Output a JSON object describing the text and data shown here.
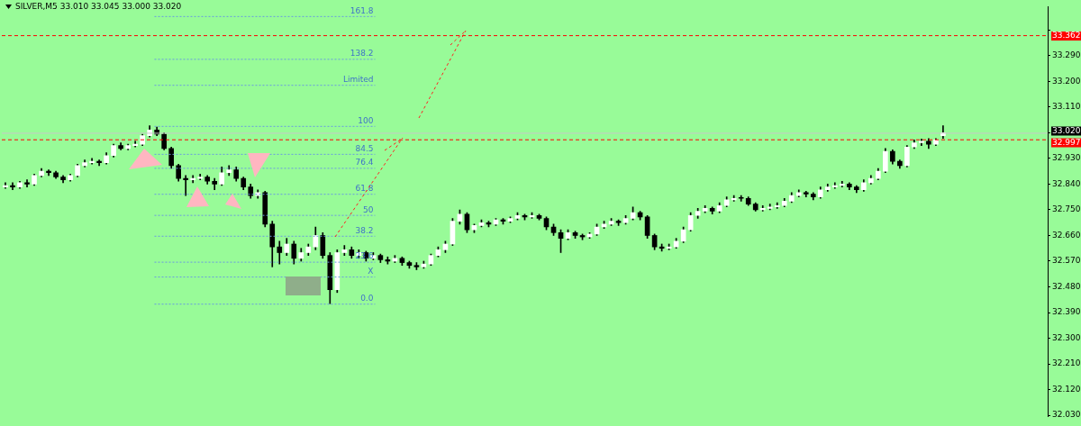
{
  "chart_data": {
    "type": "candlestick",
    "title": "SILVER,M5 33.010 33.045 33.000 33.020",
    "color": "#000000",
    "tick_labels": "y",
    "colors": [
      "#ffffff",
      "#000000",
      "#ffffff",
      "#000000",
      "#ffffff",
      "#ffffff",
      "#000000",
      "#000000",
      "#000000",
      "#ffffff",
      "#ffffff",
      "#ffffff",
      "#ffffff",
      "#000000",
      "#ffffff",
      "#ffffff",
      "#000000",
      "#ffffff",
      "#ffffff",
      "#ffffff",
      "#ffffff",
      "#000000",
      "#000000",
      "#000000",
      "#000000",
      "#000000",
      "#ffffff",
      "#ffffff",
      "#000000",
      "#000000",
      "#ffffff",
      "#ffffff",
      "#000000",
      "#000000",
      "#000000",
      "#ffffff",
      "#000000",
      "#000000",
      "#000000",
      "#ffffff",
      "#000000",
      "#ffffff",
      "#ffffff",
      "#ffffff",
      "#000000",
      "#000000",
      "#ffffff",
      "#ffffff",
      "#000000",
      "#ffffff",
      "#000000",
      "#ffffff",
      "#000000",
      "#000000",
      "#ffffff",
      "#000000",
      "#000000",
      "#000000",
      "#ffffff",
      "#ffffff",
      "#ffffff",
      "#ffffff",
      "#ffffff",
      "#ffffff",
      "#000000",
      "#ffffff",
      "#ffffff",
      "#000000",
      "#ffffff",
      "#000000",
      "#ffffff",
      "#ffffff",
      "#000000",
      "#ffffff",
      "#000000",
      "#000000",
      "#000000",
      "#000000",
      "#ffffff",
      "#000000",
      "#000000",
      "#ffffff",
      "#ffffff",
      "#ffffff",
      "#ffffff",
      "#000000",
      "#ffffff",
      "#ffffff",
      "#000000",
      "#000000",
      "#000000",
      "#000000",
      "#ffffff",
      "#ffffff",
      "#ffffff",
      "#ffffff",
      "#ffffff",
      "#ffffff",
      "#000000",
      "#ffffff",
      "#ffffff",
      "#ffffff",
      "#000000",
      "#000000",
      "#000000",
      "#ffffff",
      "#ffffff",
      "#ffffff",
      "#ffffff",
      "#ffffff",
      "#ffffff",
      "#000000",
      "#000000",
      "#ffffff",
      "#ffffff",
      "#ffffff",
      "#ffffff",
      "#000000",
      "#000000",
      "#ffffff",
      "#ffffff",
      "#ffffff",
      "#ffffff",
      "#000000",
      "#000000",
      "#ffffff",
      "#ffffff",
      "#ffffff",
      "#000000",
      "#ffffff",
      "#ffffff",
      null,
      null,
      null,
      null,
      null,
      null,
      null,
      null,
      null,
      null,
      null,
      null,
      null,
      null
    ],
    "categories": [
      null,
      null,
      null,
      null,
      null,
      null,
      null,
      null,
      null,
      null,
      null,
      null,
      null,
      null,
      null,
      null,
      null,
      null,
      null,
      null,
      null,
      null,
      null,
      null,
      null,
      null,
      null,
      null,
      null,
      null,
      null,
      null,
      null,
      null,
      null,
      null,
      null,
      null,
      null,
      null,
      null,
      null,
      null,
      null,
      null,
      null,
      null,
      null,
      null,
      null,
      null,
      null,
      null,
      null,
      null,
      null,
      null,
      null,
      null,
      null,
      null,
      null,
      null,
      null,
      null,
      null,
      null,
      null,
      null,
      null,
      null,
      null,
      null,
      null,
      null,
      null,
      null,
      null,
      null,
      null,
      null,
      null,
      null,
      null,
      null,
      null,
      null,
      null,
      null,
      null,
      null,
      null,
      null,
      null,
      null,
      null,
      null,
      null,
      null,
      null,
      null,
      null,
      null,
      null,
      null,
      null,
      null,
      null,
      null,
      null,
      null,
      null,
      null,
      null,
      null,
      null,
      null,
      null,
      null,
      null,
      null,
      null,
      null,
      null,
      null,
      null,
      null,
      null,
      null,
      null,
      null,
      null,
      null,
      null,
      null,
      null,
      null,
      null,
      null,
      null,
      null,
      null,
      null,
      null,
      null
    ],
    "ohlc": [
      [
        32.83,
        32.845,
        32.825,
        32.835
      ],
      [
        32.835,
        32.845,
        32.82,
        32.83
      ],
      [
        32.83,
        32.85,
        32.825,
        32.845
      ],
      [
        32.845,
        32.855,
        32.83,
        32.84
      ],
      [
        32.84,
        32.875,
        32.835,
        32.87
      ],
      [
        32.87,
        32.895,
        32.865,
        32.885
      ],
      [
        32.885,
        32.89,
        32.87,
        32.88
      ],
      [
        32.88,
        32.885,
        32.86,
        32.865
      ],
      [
        32.865,
        32.87,
        32.845,
        32.855
      ],
      [
        32.855,
        32.875,
        32.85,
        32.87
      ],
      [
        32.87,
        32.91,
        32.865,
        32.905
      ],
      [
        32.905,
        32.925,
        32.9,
        32.915
      ],
      [
        32.915,
        32.93,
        32.91,
        32.92
      ],
      [
        32.92,
        32.925,
        32.905,
        32.915
      ],
      [
        32.915,
        32.95,
        32.91,
        32.94
      ],
      [
        32.94,
        32.98,
        32.935,
        32.975
      ],
      [
        32.975,
        32.985,
        32.96,
        32.965
      ],
      [
        32.965,
        32.98,
        32.96,
        32.975
      ],
      [
        32.975,
        32.99,
        32.97,
        32.98
      ],
      [
        32.98,
        33.015,
        32.975,
        33.01
      ],
      [
        33.01,
        33.045,
        33.005,
        33.03
      ],
      [
        33.03,
        33.04,
        33.01,
        33.015
      ],
      [
        33.015,
        33.02,
        32.96,
        32.965
      ],
      [
        32.965,
        32.97,
        32.895,
        32.905
      ],
      [
        32.905,
        32.91,
        32.85,
        32.86
      ],
      [
        32.86,
        32.87,
        32.8,
        32.855
      ],
      [
        32.855,
        32.87,
        32.845,
        32.86
      ],
      [
        32.86,
        32.875,
        32.855,
        32.865
      ],
      [
        32.865,
        32.87,
        32.84,
        32.85
      ],
      [
        32.85,
        32.86,
        32.82,
        32.84
      ],
      [
        32.84,
        32.9,
        32.835,
        32.88
      ],
      [
        32.88,
        32.905,
        32.87,
        32.89
      ],
      [
        32.89,
        32.9,
        32.85,
        32.86
      ],
      [
        32.86,
        32.865,
        32.82,
        32.83
      ],
      [
        32.83,
        32.84,
        32.79,
        32.8
      ],
      [
        32.8,
        32.82,
        32.79,
        32.81
      ],
      [
        32.81,
        32.815,
        32.69,
        32.7
      ],
      [
        32.7,
        32.71,
        32.55,
        32.62
      ],
      [
        32.62,
        32.64,
        32.56,
        32.6
      ],
      [
        32.6,
        32.65,
        32.59,
        32.63
      ],
      [
        32.63,
        32.64,
        32.56,
        32.58
      ],
      [
        32.58,
        32.615,
        32.57,
        32.6
      ],
      [
        32.6,
        32.63,
        32.59,
        32.62
      ],
      [
        32.62,
        32.69,
        32.61,
        32.66
      ],
      [
        32.66,
        32.67,
        32.58,
        32.59
      ],
      [
        32.59,
        32.6,
        32.421,
        32.47
      ],
      [
        32.47,
        32.61,
        32.46,
        32.6
      ],
      [
        32.6,
        32.625,
        32.59,
        32.61
      ],
      [
        32.61,
        32.62,
        32.58,
        32.59
      ],
      [
        32.59,
        32.61,
        32.58,
        32.6
      ],
      [
        32.6,
        32.605,
        32.57,
        32.58
      ],
      [
        32.58,
        32.6,
        32.575,
        32.59
      ],
      [
        32.59,
        32.595,
        32.565,
        32.575
      ],
      [
        32.575,
        32.585,
        32.56,
        32.57
      ],
      [
        32.57,
        32.59,
        32.565,
        32.58
      ],
      [
        32.58,
        32.585,
        32.555,
        32.565
      ],
      [
        32.565,
        32.57,
        32.545,
        32.555
      ],
      [
        32.555,
        32.565,
        32.54,
        32.55
      ],
      [
        32.55,
        32.57,
        32.545,
        32.56
      ],
      [
        32.56,
        32.595,
        32.555,
        32.59
      ],
      [
        32.59,
        32.62,
        32.585,
        32.61
      ],
      [
        32.61,
        32.64,
        32.6,
        32.63
      ],
      [
        32.63,
        32.72,
        32.625,
        32.71
      ],
      [
        32.71,
        32.75,
        32.7,
        32.735
      ],
      [
        32.735,
        32.74,
        32.67,
        32.68
      ],
      [
        32.68,
        32.7,
        32.67,
        32.695
      ],
      [
        32.695,
        32.715,
        32.69,
        32.705
      ],
      [
        32.705,
        32.71,
        32.69,
        32.7
      ],
      [
        32.7,
        32.72,
        32.695,
        32.715
      ],
      [
        32.715,
        32.72,
        32.7,
        32.71
      ],
      [
        32.71,
        32.725,
        32.705,
        32.72
      ],
      [
        32.72,
        32.74,
        32.715,
        32.73
      ],
      [
        32.73,
        32.735,
        32.715,
        32.725
      ],
      [
        32.725,
        32.74,
        32.72,
        32.73
      ],
      [
        32.73,
        32.735,
        32.715,
        32.72
      ],
      [
        32.72,
        32.725,
        32.68,
        32.69
      ],
      [
        32.69,
        32.7,
        32.66,
        32.67
      ],
      [
        32.67,
        32.68,
        32.6,
        32.65
      ],
      [
        32.65,
        32.68,
        32.645,
        32.67
      ],
      [
        32.67,
        32.675,
        32.65,
        32.66
      ],
      [
        32.66,
        32.665,
        32.645,
        32.655
      ],
      [
        32.655,
        32.67,
        32.65,
        32.665
      ],
      [
        32.665,
        32.7,
        32.66,
        32.69
      ],
      [
        32.69,
        32.71,
        32.685,
        32.7
      ],
      [
        32.7,
        32.72,
        32.695,
        32.71
      ],
      [
        32.71,
        32.715,
        32.695,
        32.705
      ],
      [
        32.705,
        32.73,
        32.7,
        32.72
      ],
      [
        32.72,
        32.76,
        32.715,
        32.74
      ],
      [
        32.74,
        32.745,
        32.715,
        32.725
      ],
      [
        32.725,
        32.73,
        32.65,
        32.66
      ],
      [
        32.66,
        32.665,
        32.61,
        32.62
      ],
      [
        32.62,
        32.63,
        32.605,
        32.615
      ],
      [
        32.615,
        32.63,
        32.61,
        32.62
      ],
      [
        32.62,
        32.65,
        32.615,
        32.64
      ],
      [
        32.64,
        32.69,
        32.635,
        32.68
      ],
      [
        32.68,
        32.74,
        32.675,
        32.73
      ],
      [
        32.73,
        32.755,
        32.72,
        32.745
      ],
      [
        32.745,
        32.765,
        32.74,
        32.755
      ],
      [
        32.755,
        32.76,
        32.735,
        32.745
      ],
      [
        32.745,
        32.775,
        32.74,
        32.765
      ],
      [
        32.765,
        32.795,
        32.76,
        32.785
      ],
      [
        32.785,
        32.8,
        32.78,
        32.79
      ],
      [
        32.79,
        32.8,
        32.78,
        32.79
      ],
      [
        32.79,
        32.795,
        32.765,
        32.77
      ],
      [
        32.77,
        32.775,
        32.745,
        32.75
      ],
      [
        32.75,
        32.765,
        32.745,
        32.755
      ],
      [
        32.755,
        32.77,
        32.75,
        32.76
      ],
      [
        32.76,
        32.775,
        32.755,
        32.765
      ],
      [
        32.765,
        32.79,
        32.76,
        32.78
      ],
      [
        32.78,
        32.81,
        32.775,
        32.8
      ],
      [
        32.8,
        32.82,
        32.795,
        32.81
      ],
      [
        32.81,
        32.815,
        32.795,
        32.805
      ],
      [
        32.805,
        32.81,
        32.785,
        32.795
      ],
      [
        32.795,
        32.83,
        32.79,
        32.82
      ],
      [
        32.82,
        32.84,
        32.815,
        32.83
      ],
      [
        32.83,
        32.845,
        32.825,
        32.835
      ],
      [
        32.835,
        32.85,
        32.83,
        32.84
      ],
      [
        32.84,
        32.845,
        32.82,
        32.83
      ],
      [
        32.83,
        32.835,
        32.81,
        32.82
      ],
      [
        32.82,
        32.855,
        32.815,
        32.845
      ],
      [
        32.845,
        32.87,
        32.84,
        32.86
      ],
      [
        32.86,
        32.895,
        32.855,
        32.885
      ],
      [
        32.885,
        32.965,
        32.88,
        32.955
      ],
      [
        32.955,
        32.96,
        32.91,
        32.92
      ],
      [
        32.92,
        32.925,
        32.895,
        32.905
      ],
      [
        32.905,
        32.975,
        32.9,
        32.97
      ],
      [
        32.97,
        32.995,
        32.965,
        32.985
      ],
      [
        32.985,
        32.998,
        32.975,
        32.99
      ],
      [
        32.99,
        33.0,
        32.965,
        32.98
      ],
      [
        32.98,
        33.0,
        32.975,
        32.995
      ],
      [
        33.01,
        33.045,
        33.0,
        33.02
      ],
      null,
      null,
      null,
      null,
      null,
      null,
      null,
      null,
      null,
      null,
      null,
      null,
      null,
      null
    ],
    "ylim": [
      32.027,
      33.462
    ],
    "yticks": [
      {
        "value": 32.03,
        "label": "32.030"
      },
      {
        "value": 32.12,
        "label": "32.120"
      },
      {
        "value": 32.21,
        "label": "32.210"
      },
      {
        "value": 32.3,
        "label": "32.300"
      },
      {
        "value": 32.39,
        "label": "32.390"
      },
      {
        "value": 32.48,
        "label": "32.480"
      },
      {
        "value": 32.57,
        "label": "32.570"
      },
      {
        "value": 32.66,
        "label": "32.660"
      },
      {
        "value": 32.75,
        "label": "32.750"
      },
      {
        "value": 32.84,
        "label": "32.840"
      },
      {
        "value": 32.93,
        "label": "32.930"
      },
      {
        "value": 33.02,
        "label": "33.020"
      },
      {
        "value": 33.11,
        "label": "33.110"
      },
      {
        "value": 33.2,
        "label": "33.200"
      },
      {
        "value": 33.29,
        "label": "33.290"
      },
      {
        "value": 33.38,
        "label": null
      }
    ],
    "annotations": [
      {
        "text": "161.8",
        "y": 33.429
      },
      {
        "text": "138.2",
        "y": 33.279
      },
      {
        "text": "Limited",
        "y": 33.188
      },
      {
        "text": "100",
        "y": 33.044
      },
      {
        "text": "84.5",
        "y": 32.946
      },
      {
        "text": "76.4",
        "y": 32.897
      },
      {
        "text": "61.8",
        "y": 32.806
      },
      {
        "text": "50",
        "y": 32.732
      },
      {
        "text": "38.2",
        "y": 32.659
      },
      {
        "text": "23.6",
        "y": 32.568
      },
      {
        "text": "X",
        "y": 32.516
      },
      {
        "text": "0.0",
        "y": 32.421
      }
    ],
    "ref_lines": [
      {
        "axis": "y",
        "value": 33.429,
        "color": "#6a9be0",
        "line_style": "dotted"
      },
      {
        "axis": "y",
        "value": 33.279,
        "color": "#6a9be0",
        "line_style": "dotted"
      },
      {
        "axis": "y",
        "value": 33.188,
        "color": "#6a9be0",
        "line_style": "dotted"
      },
      {
        "axis": "y",
        "value": 33.044,
        "color": "#6a9be0",
        "line_style": "dotted"
      },
      {
        "axis": "y",
        "value": 32.946,
        "color": "#6a9be0",
        "line_style": "dotted"
      },
      {
        "axis": "y",
        "value": 32.897,
        "color": "#6a9be0",
        "line_style": "dotted"
      },
      {
        "axis": "y",
        "value": 32.806,
        "color": "#6a9be0",
        "line_style": "dotted"
      },
      {
        "axis": "y",
        "value": 32.732,
        "color": "#6a9be0",
        "line_style": "dotted"
      },
      {
        "axis": "y",
        "value": 32.659,
        "color": "#6a9be0",
        "line_style": "dotted"
      },
      {
        "axis": "y",
        "value": 32.568,
        "color": "#6a9be0",
        "line_style": "dotted"
      },
      {
        "axis": "y",
        "value": 32.516,
        "color": "#6a9be0",
        "line_style": "dotted"
      },
      {
        "axis": "y",
        "value": 32.421,
        "color": "#6a9be0",
        "line_style": "dotted"
      },
      {
        "axis": "y",
        "value": 33.362,
        "label": "33.362",
        "color": "#ff0000",
        "line_style": "dashed"
      },
      {
        "axis": "y",
        "value": 33.02,
        "label": "33.020",
        "color": "#c8c8c8",
        "line_style": "solid"
      },
      {
        "axis": "y",
        "value": 32.997,
        "label": "32.997",
        "color": "#ff0000",
        "line_style": "dashed"
      }
    ]
  }
}
